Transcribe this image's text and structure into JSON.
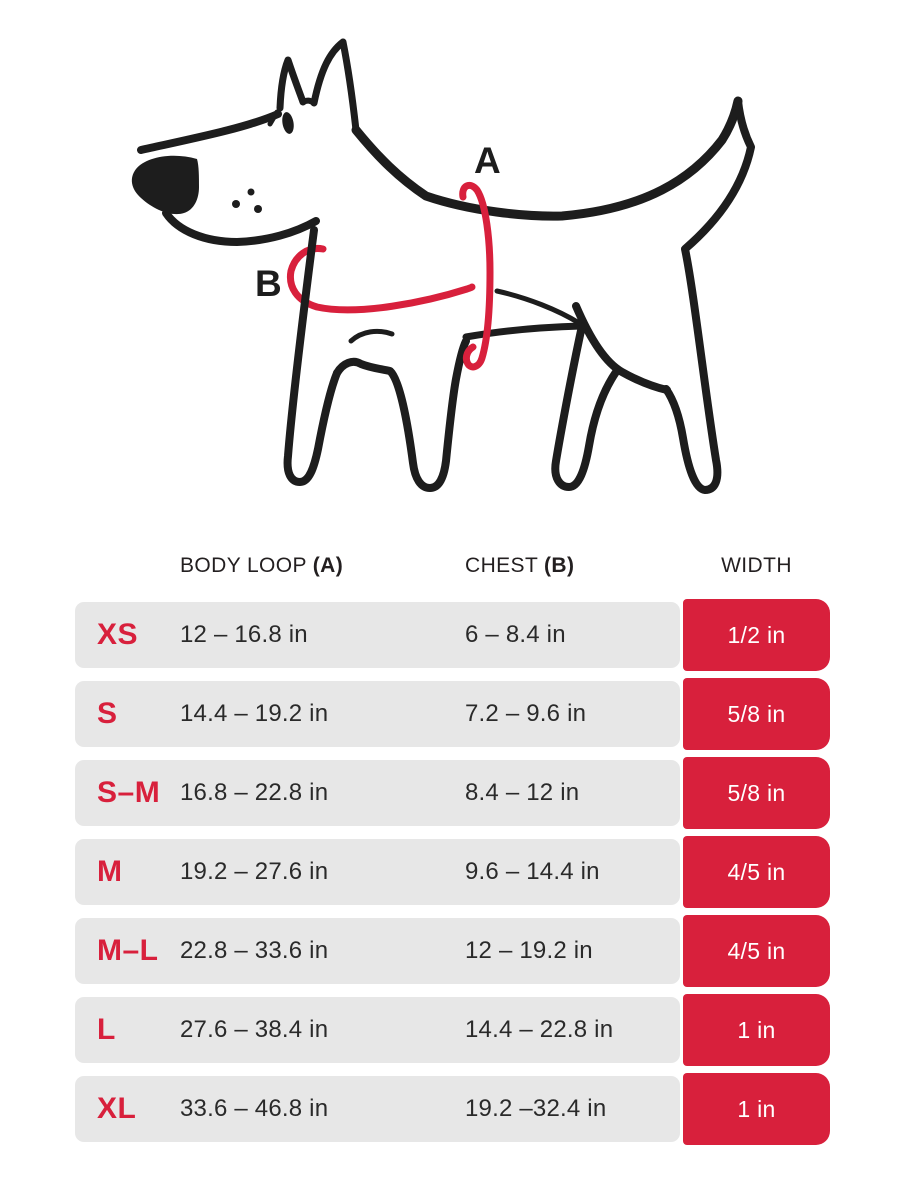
{
  "theme": {
    "accent_red": "#d8203c",
    "row_gray": "#e7e7e7",
    "ink": "#1d1d1d",
    "badge_text": "#ffffff"
  },
  "diagram": {
    "label_a": "A",
    "label_b": "B"
  },
  "table": {
    "headers": {
      "body_loop_prefix": "BODY LOOP ",
      "body_loop_bold": "(A)",
      "chest_prefix": "CHEST ",
      "chest_bold": "(B)",
      "width": "WIDTH"
    },
    "rows": [
      {
        "size": "XS",
        "body_loop": "12 – 16.8 in",
        "chest": "6 – 8.4 in",
        "width": "1/2 in"
      },
      {
        "size": "S",
        "body_loop": "14.4 – 19.2 in",
        "chest": "7.2 – 9.6 in",
        "width": "5/8 in"
      },
      {
        "size": "S–M",
        "body_loop": "16.8 – 22.8 in",
        "chest": "8.4 – 12 in",
        "width": "5/8 in"
      },
      {
        "size": "M",
        "body_loop": "19.2 – 27.6 in",
        "chest": "9.6 – 14.4 in",
        "width": "4/5 in"
      },
      {
        "size": "M–L",
        "body_loop": "22.8 – 33.6 in",
        "chest": "12 – 19.2 in",
        "width": "4/5 in"
      },
      {
        "size": "L",
        "body_loop": "27.6 – 38.4 in",
        "chest": "14.4 – 22.8 in",
        "width": "1 in"
      },
      {
        "size": "XL",
        "body_loop": "33.6 – 46.8 in",
        "chest": "19.2 –32.4 in",
        "width": "1 in"
      }
    ]
  }
}
